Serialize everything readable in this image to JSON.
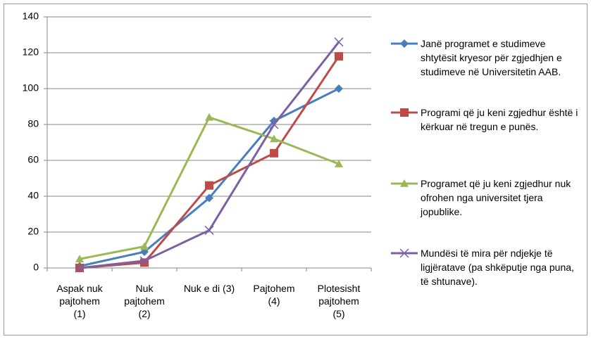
{
  "chart_data": {
    "type": "line",
    "categories": [
      "Aspak nuk pajtohem (1)",
      "Nuk pajtohem (2)",
      "Nuk e di (3)",
      "Pajtohem (4)",
      "Plotesisht pajtohem (5)"
    ],
    "series": [
      {
        "name": "Janë programet e studimeve shtytësit kryesor për zgjedhjen e studimeve në Universitetin AAB.",
        "color": "#4a7ebb",
        "marker": "diamond",
        "values": [
          1,
          9,
          39,
          82,
          100
        ]
      },
      {
        "name": "Programi që ju keni zgjedhur është i kërkuar në tregun e punës.",
        "color": "#be4b48",
        "marker": "square",
        "values": [
          0,
          3,
          46,
          64,
          118
        ]
      },
      {
        "name": "Programet që ju keni zgjedhur nuk ofrohen nga universitet tjera jopublike.",
        "color": "#98b954",
        "marker": "triangle",
        "values": [
          5,
          12,
          84,
          72,
          58
        ]
      },
      {
        "name": "Mundësi të mira për ndjekje të ligjëratave (pa shkëputje nga puna, të shtunave).",
        "color": "#7d60a0",
        "marker": "x",
        "values": [
          0,
          4,
          21,
          80,
          126
        ]
      }
    ],
    "ylim": [
      0,
      140
    ],
    "yticks": [
      0,
      20,
      40,
      60,
      80,
      100,
      120,
      140
    ],
    "grid": true,
    "legend": "right"
  }
}
